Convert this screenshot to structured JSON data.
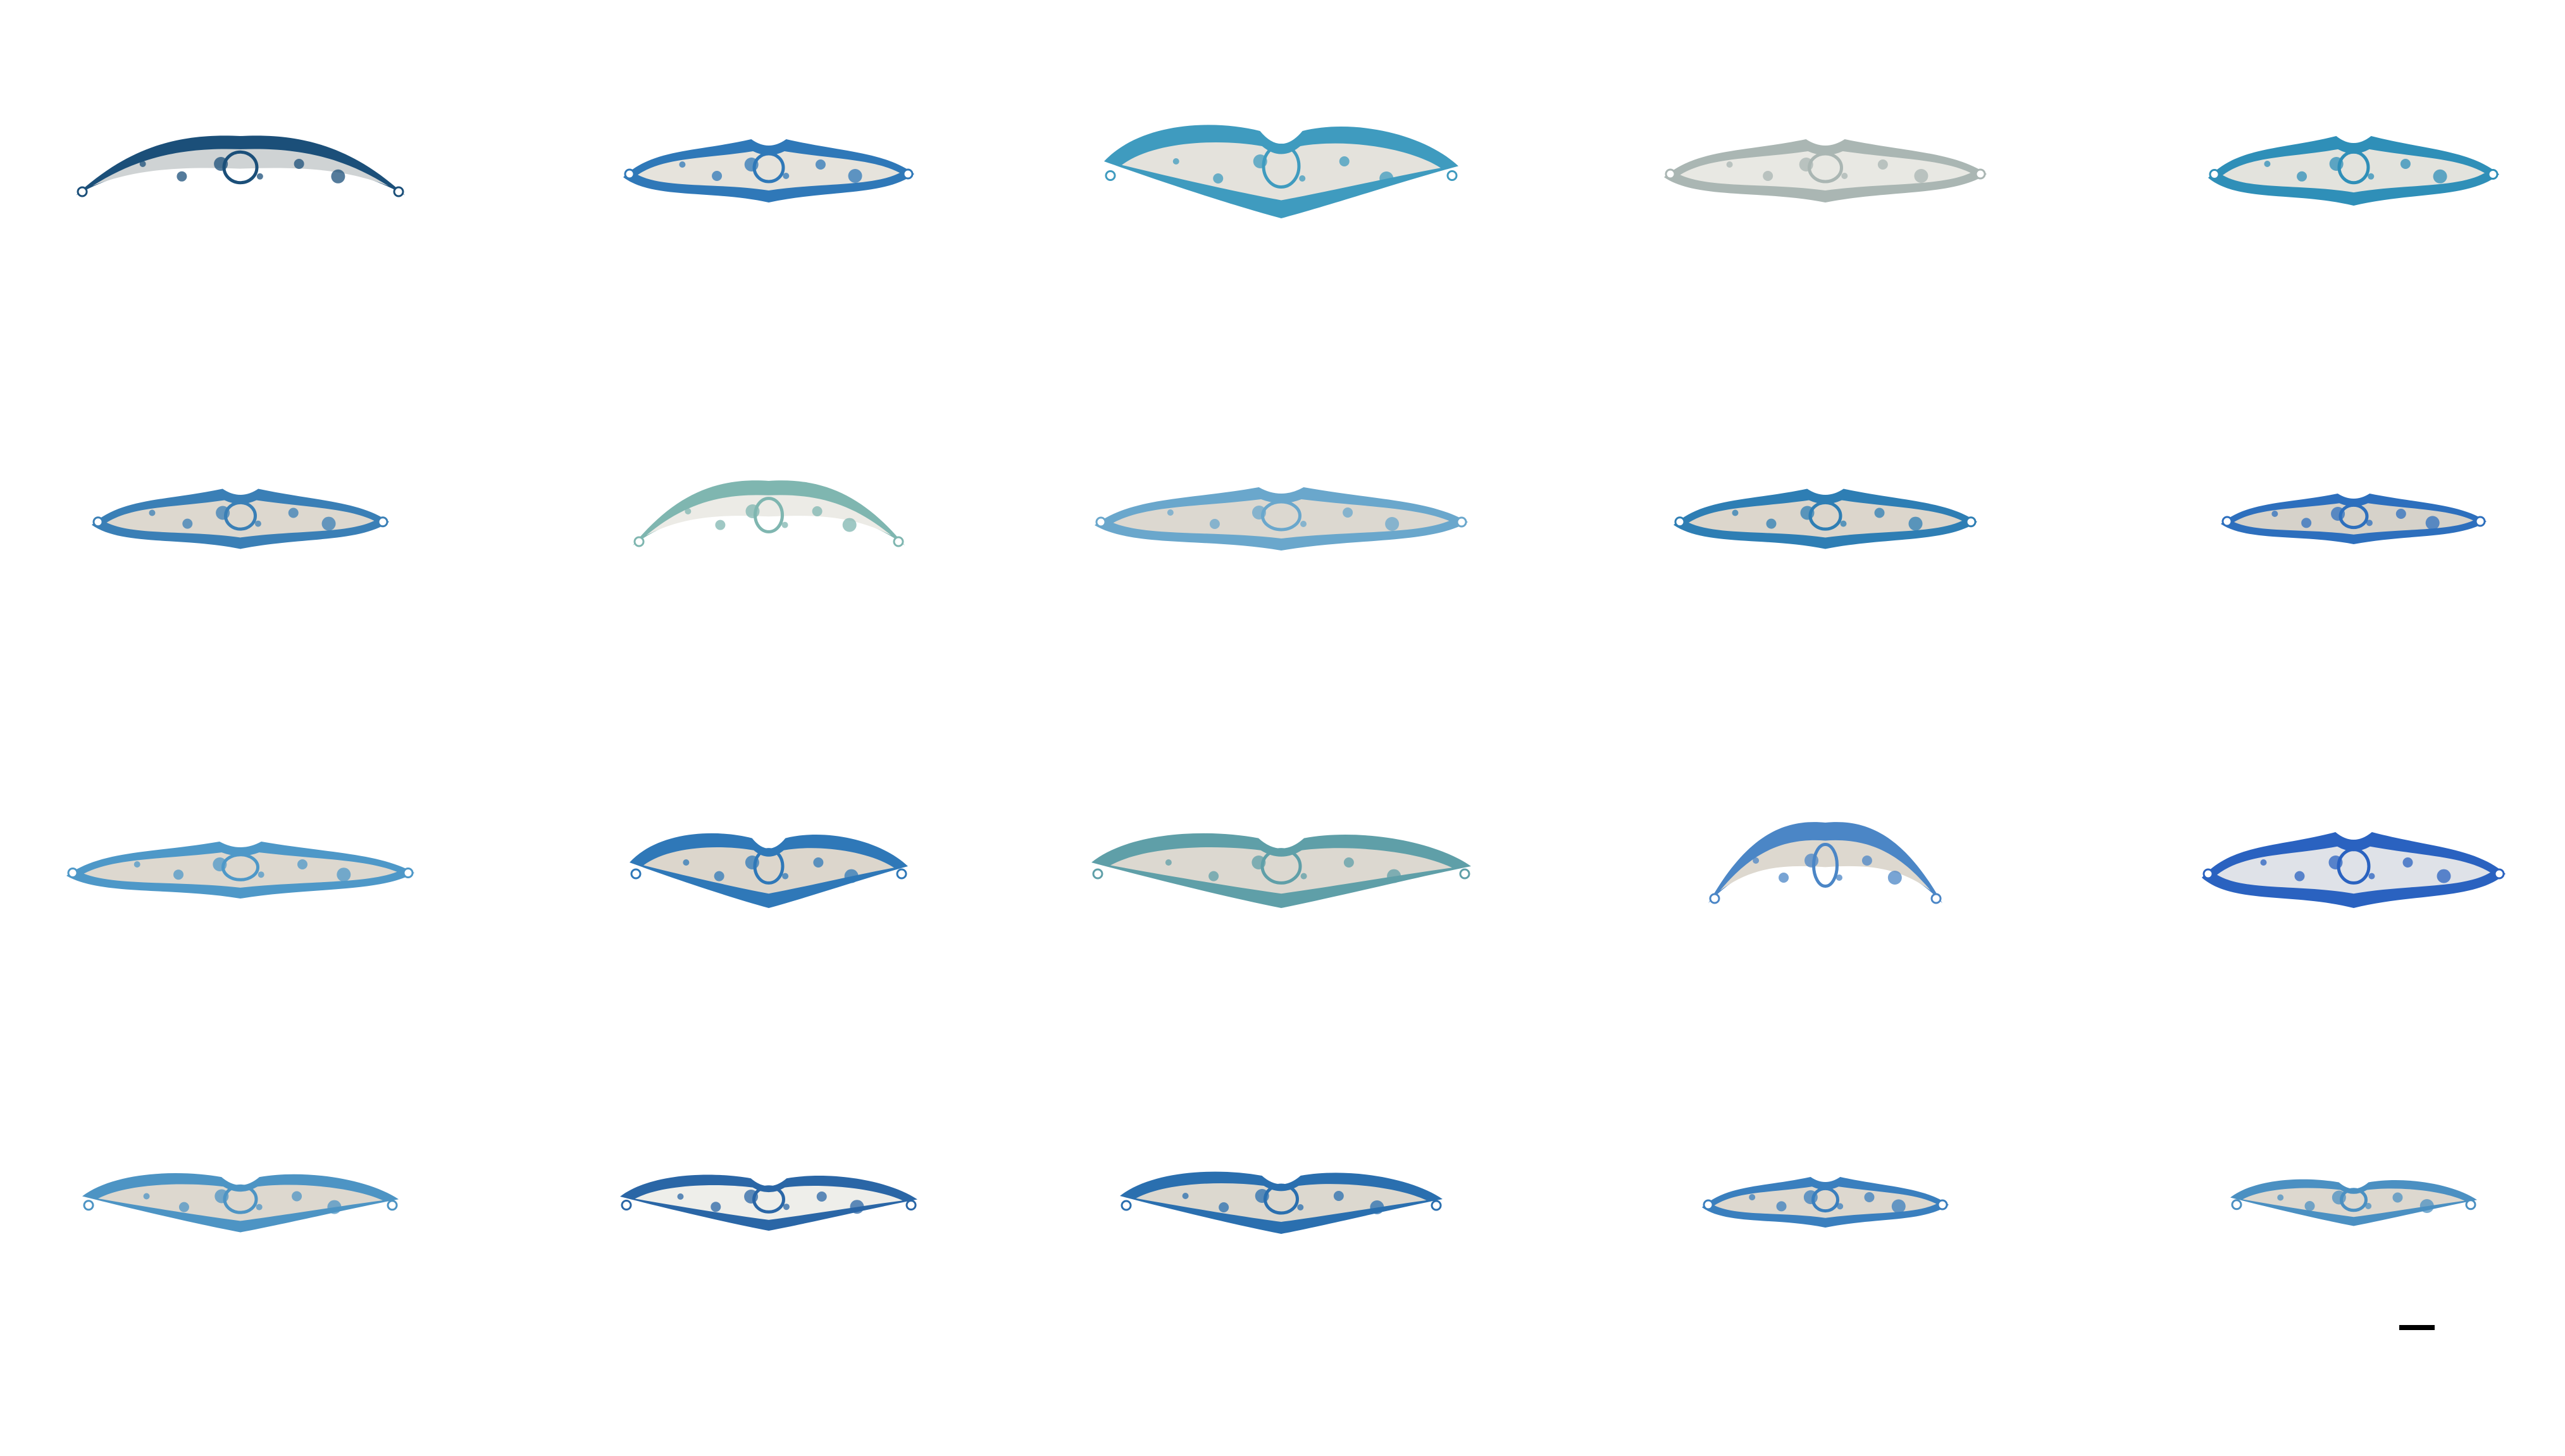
{
  "figure": {
    "grid": {
      "rows": 4,
      "columns": 5
    },
    "sections": [
      {
        "row": 1,
        "col": 1,
        "stain": "#1b4f79",
        "interior": "#cfd3d4",
        "shape": "arch"
      },
      {
        "row": 1,
        "col": 2,
        "stain": "#2f78b8",
        "interior": "#e6e3dc",
        "shape": "flat"
      },
      {
        "row": 1,
        "col": 3,
        "stain": "#3f9bbf",
        "interior": "#e4e2dc",
        "shape": "vee"
      },
      {
        "row": 1,
        "col": 4,
        "stain": "#aab6b3",
        "interior": "#e8e8e3",
        "shape": "flat"
      },
      {
        "row": 1,
        "col": 5,
        "stain": "#2f8fb8",
        "interior": "#e3e3dd",
        "shape": "flat"
      },
      {
        "row": 2,
        "col": 1,
        "stain": "#3a7fb6",
        "interior": "#ddd8cf",
        "shape": "flat"
      },
      {
        "row": 2,
        "col": 2,
        "stain": "#7fb6b0",
        "interior": "#ecebe6",
        "shape": "arch"
      },
      {
        "row": 2,
        "col": 3,
        "stain": "#6aa7cc",
        "interior": "#dcd8d0",
        "shape": "flat"
      },
      {
        "row": 2,
        "col": 4,
        "stain": "#2e7eb4",
        "interior": "#dcd6cc",
        "shape": "flat"
      },
      {
        "row": 2,
        "col": 5,
        "stain": "#2d6fbd",
        "interior": "#d6d2ca",
        "shape": "flat"
      },
      {
        "row": 3,
        "col": 1,
        "stain": "#4e98c8",
        "interior": "#ddd8cf",
        "shape": "flat"
      },
      {
        "row": 3,
        "col": 2,
        "stain": "#2f78b8",
        "interior": "#dcd6cc",
        "shape": "vee"
      },
      {
        "row": 3,
        "col": 3,
        "stain": "#5f9fa8",
        "interior": "#dcd8d0",
        "shape": "vee"
      },
      {
        "row": 3,
        "col": 4,
        "stain": "#4b86c6",
        "interior": "#ddd8cf",
        "shape": "arch"
      },
      {
        "row": 3,
        "col": 5,
        "stain": "#2a62c0",
        "interior": "#dfe2e8",
        "shape": "flat"
      },
      {
        "row": 4,
        "col": 1,
        "stain": "#4d94c4",
        "interior": "#ddd8cf",
        "shape": "vee"
      },
      {
        "row": 4,
        "col": 2,
        "stain": "#2a66a6",
        "interior": "#eeeeea",
        "shape": "vee"
      },
      {
        "row": 4,
        "col": 3,
        "stain": "#2a6faf",
        "interior": "#dcd8cf",
        "shape": "vee"
      },
      {
        "row": 4,
        "col": 4,
        "stain": "#3a7fbe",
        "interior": "#ddd8cf",
        "shape": "flat"
      },
      {
        "row": 4,
        "col": 5,
        "stain": "#4b90c2",
        "interior": "#ddd8cf",
        "shape": "vee"
      }
    ],
    "scale_bar_label": "",
    "background": "#ffffff"
  }
}
